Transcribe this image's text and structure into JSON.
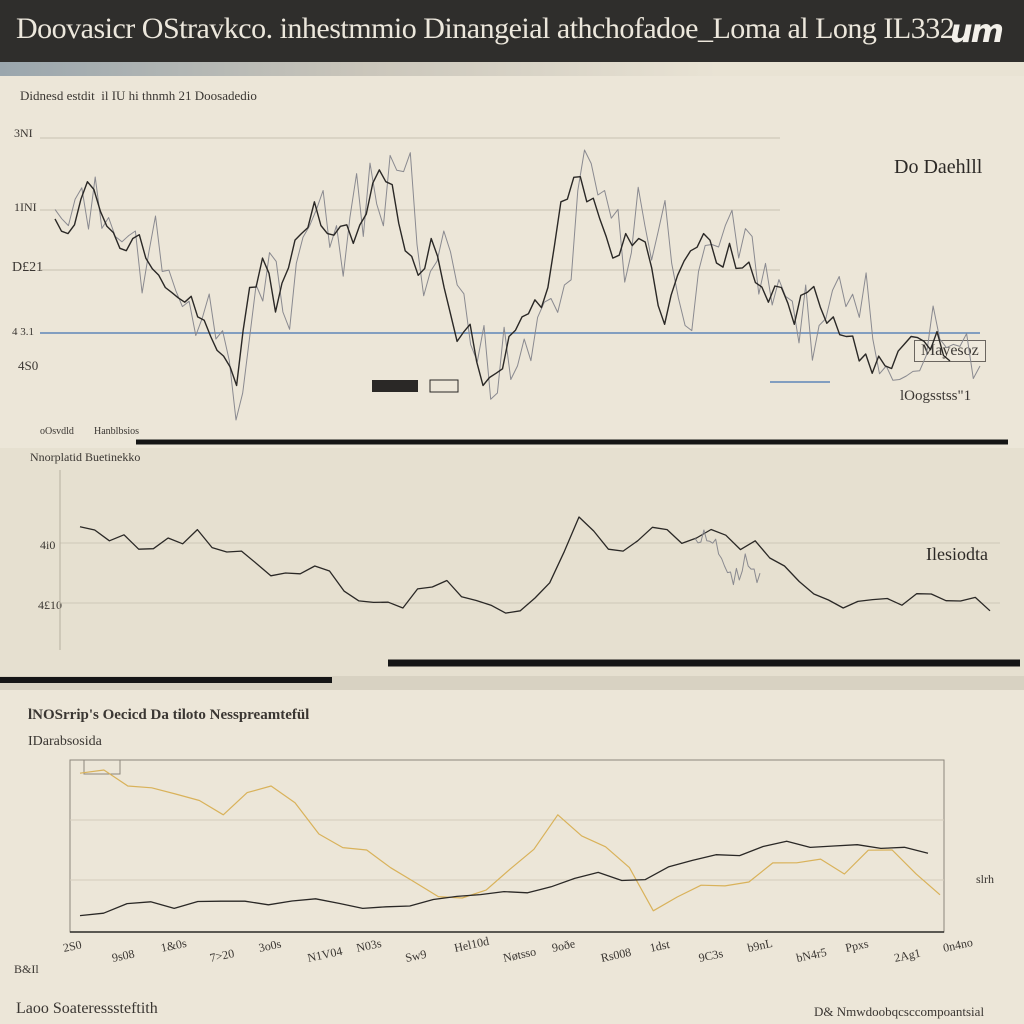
{
  "header": {
    "title": "Doovasicr OStravkco. inhestmmio Dinangeial athchofadoe_Loma al Long IL332",
    "logo": "um"
  },
  "panel1": {
    "subtitle": "Didnesd estdit  il IU hi thnmh 21 Doosadedio",
    "legend_label": "Do Daehlll",
    "series_box": "Mayesoz",
    "right_note": "lOogsstss\"1",
    "bottom_note_a": "oOsvdld",
    "bottom_note_b": "Hanblbsios",
    "tick_labels": [
      "3NI",
      "1INI",
      "D£21",
      "4 3.1",
      "4S0"
    ]
  },
  "panel2": {
    "subtitle": "Nnorplatid Buetinekko",
    "right_label": "Ilesiodta",
    "tick_labels": [
      "4i0",
      "4£10"
    ]
  },
  "panel3": {
    "title": "lNOSrrip's Oecicd Da tiloto Nesspreamtefül",
    "subtitle": "IDarabsosida",
    "right_label": "slrh",
    "x_tick_labels": [
      "2S0",
      "9s08",
      "1&0s",
      "7>20",
      "3o0s",
      "N1V04",
      "N03s",
      "Sw9",
      "Hel10d",
      "Nøtsso",
      "9oðe",
      "Rs008",
      "1dst",
      "9C3s",
      "b9nL",
      "bN4r5",
      "Ppxs",
      "2Ag1",
      "0n4no"
    ],
    "footer_left": "Laoo Soateresssteftith",
    "footer_right": "D& Nmwdoobqcsccompoantsial",
    "y_label_left": "B&Il"
  },
  "colors": {
    "header_bg": "#2f2e2c",
    "page_bg": "#e9e3d4",
    "series_dark": "#2a2826",
    "series_gray": "#8a8a90",
    "series_blue": "#5f86b8",
    "series_gold": "#d9b25a"
  },
  "chart_data": [
    {
      "type": "line",
      "title": "Didnesd estdit  il IU hi thnmh 21 Doosadedio",
      "series": [
        {
          "values": [
            0.78,
            0.72,
            0.86,
            0.9,
            0.75,
            0.66,
            0.7,
            0.62,
            0.55,
            0.48,
            0.44,
            0.38,
            0.3,
            0.22,
            0.1,
            0.5,
            0.62,
            0.4,
            0.58,
            0.72,
            0.85,
            0.72,
            0.75,
            0.68,
            0.8,
            0.98,
            0.92,
            0.65,
            0.55,
            0.7,
            0.5,
            0.28,
            0.35,
            0.1,
            0.15,
            0.3,
            0.38,
            0.45,
            0.5,
            0.85,
            0.95,
            0.85,
            0.78,
            0.62,
            0.72,
            0.7,
            0.58,
            0.35,
            0.55,
            0.65,
            0.72,
            0.6,
            0.68,
            0.58,
            0.52,
            0.44,
            0.5,
            0.35,
            0.48,
            0.42,
            0.38,
            0.3,
            0.2,
            0.15,
            0.18,
            0.24,
            0.3,
            0.28,
            0.32,
            0.2
          ]
        }
      ]
    },
    {
      "type": "line",
      "title": "Nnorplatid Buetinekko",
      "series": [
        {
          "values": [
            0.88,
            0.78,
            0.72,
            0.8,
            0.86,
            0.7,
            0.62,
            0.55,
            0.6,
            0.42,
            0.34,
            0.3,
            0.45,
            0.38,
            0.32,
            0.28,
            0.48,
            0.95,
            0.72,
            0.78,
            0.86,
            0.8,
            0.82,
            0.78,
            0.6,
            0.4,
            0.3,
            0.36,
            0.32,
            0.4,
            0.35,
            0.28
          ]
        }
      ]
    },
    {
      "type": "line",
      "title": "lNOSrrip's Oecicd Da tiloto Nesspreamtefül",
      "x": [
        "2S0",
        "9s08",
        "1&0s",
        "7>20",
        "3o0s",
        "N1V04",
        "N03s",
        "Sw9",
        "Hel10d",
        "Nøtsso",
        "9oðe",
        "Rs008",
        "1dst",
        "9C3s",
        "b9nL",
        "bN4r5",
        "Ppxs",
        "2Ag1",
        "0n4no"
      ],
      "series": [
        {
          "values": [
            0.12,
            0.22,
            0.18,
            0.24,
            0.21,
            0.26,
            0.18,
            0.2,
            0.28,
            0.32,
            0.36,
            0.48,
            0.42,
            0.58,
            0.62,
            0.74,
            0.7,
            0.68,
            0.64
          ]
        },
        {
          "values": [
            0.98,
            0.9,
            0.85,
            0.72,
            0.9,
            0.6,
            0.5,
            0.3,
            0.2,
            0.38,
            0.72,
            0.52,
            0.12,
            0.28,
            0.3,
            0.42,
            0.35,
            0.5,
            0.22
          ]
        }
      ]
    }
  ]
}
